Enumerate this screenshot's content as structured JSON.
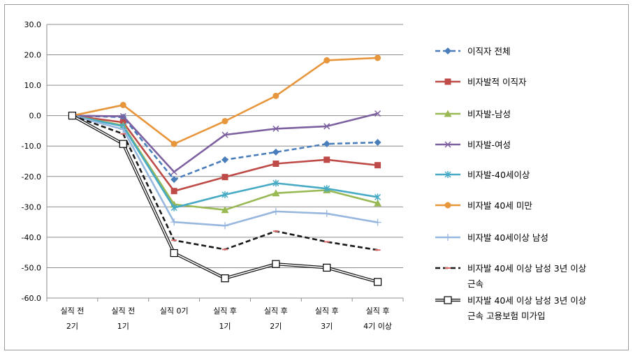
{
  "chart_data": {
    "type": "line",
    "title": "",
    "xlabel": "",
    "ylabel": "",
    "ylim": [
      -60,
      30
    ],
    "y_ticks": [
      "30.0",
      "20.0",
      "10.0",
      "0.0",
      "-10.0",
      "-20.0",
      "-30.0",
      "-40.0",
      "-50.0",
      "-60.0"
    ],
    "y_tick_values": [
      30,
      20,
      10,
      0,
      -10,
      -20,
      -30,
      -40,
      -50,
      -60
    ],
    "categories": [
      [
        "실직 전",
        "2기"
      ],
      [
        "실직 전",
        "1기"
      ],
      [
        "실직 0기",
        ""
      ],
      [
        "실직 후",
        "1기"
      ],
      [
        "실직 후",
        "2기"
      ],
      [
        "실직 후",
        "3기"
      ],
      [
        "실직 후",
        "4기 이상"
      ]
    ],
    "grid": "horizontal",
    "legend_position": "right",
    "series": [
      {
        "name": "이직자 전체",
        "color": "#4a7ebb",
        "dash": "dashed",
        "marker": "diamond",
        "values": [
          0,
          -0.5,
          -21,
          -14.5,
          -12,
          -9.3,
          -8.8
        ]
      },
      {
        "name": "비자발적 이직자",
        "color": "#be4b48",
        "dash": "solid",
        "marker": "square",
        "values": [
          0,
          -2.2,
          -24.8,
          -20.2,
          -15.8,
          -14.5,
          -16.3
        ]
      },
      {
        "name": "비자발-남성",
        "color": "#98b954",
        "dash": "solid",
        "marker": "triangle",
        "values": [
          0,
          -3.2,
          -29.2,
          -31,
          -25.5,
          -24.5,
          -28.8
        ]
      },
      {
        "name": "비자발-여성",
        "color": "#7d60a0",
        "dash": "solid",
        "marker": "x",
        "values": [
          0,
          -0.2,
          -18.5,
          -6.3,
          -4.3,
          -3.5,
          0.7
        ]
      },
      {
        "name": "비자발-40세이상",
        "color": "#46aac5",
        "dash": "solid",
        "marker": "star",
        "values": [
          0,
          -3.5,
          -30.3,
          -26,
          -22.2,
          -24,
          -26.8
        ]
      },
      {
        "name": "비자발 40세 미만",
        "color": "#e8963c",
        "dash": "solid",
        "marker": "circle",
        "values": [
          0,
          3.5,
          -9.3,
          -1.8,
          6.5,
          18.2,
          19
        ]
      },
      {
        "name": "비자발 40세이상 남성",
        "color": "#97b7de",
        "dash": "solid",
        "marker": "plus",
        "values": [
          0,
          -4.5,
          -35,
          -36.2,
          -31.5,
          -32.2,
          -35.1
        ]
      },
      {
        "name": "비자발 40세 이상 남성 3년 이상 근속",
        "legend_lines": [
          "비자발 40세 이상 남성 3년 이상",
          "근속"
        ],
        "color": "#1a1a1a",
        "dash": "dashed",
        "marker": "dash",
        "values": [
          0,
          -6,
          -41,
          -44,
          -38,
          -41.5,
          -44.2
        ]
      },
      {
        "name": "비자발 40세 이상 남성 3년 이상 근속 고용보험 미가입",
        "legend_lines": [
          "비자발 40세 이상 남성 3년 이상",
          "근속 고용보험 미가입"
        ],
        "color": "#1a1a1a",
        "dash": "double",
        "marker": "open-square",
        "values": [
          0,
          -9.3,
          -45.2,
          -53.5,
          -48.8,
          -50,
          -54.7
        ]
      }
    ]
  }
}
